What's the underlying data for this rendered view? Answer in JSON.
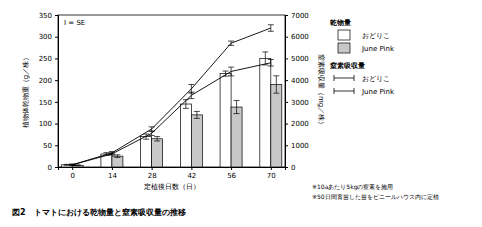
{
  "chart_data": {
    "type": "bar",
    "title": "図2　トマトにおける乾物量と窒素吸収量の推移",
    "x_label": "定植後日数（日）",
    "y_label": "植物体乾物重（g／株）",
    "y2_label": "窒素吸収量（mg／株）",
    "error_note": "I = SE",
    "legend_titles": [
      "乾物量",
      "窒素吸収量"
    ],
    "notes": [
      "※10aあたり5kgの窒素を施用",
      "※50日間育苗した苗をビニールハウス内に定植"
    ],
    "x": [
      0,
      14,
      28,
      42,
      56,
      70
    ],
    "xlim": [
      -5,
      75
    ],
    "xticks": [
      0,
      14,
      28,
      42,
      56,
      70
    ],
    "ylim": [
      0,
      350
    ],
    "yticks": [
      0,
      50,
      100,
      150,
      200,
      250,
      300,
      350
    ],
    "y2lim": [
      0,
      7000
    ],
    "y2ticks": [
      0,
      1000,
      2000,
      3000,
      4000,
      5000,
      6000,
      7000
    ],
    "legend": "right",
    "series": [
      {
        "name": "おどりこ",
        "type": "bar",
        "color": "#ffffff",
        "values": [
          5,
          30,
          70,
          145,
          215,
          250
        ],
        "errors": [
          1,
          3,
          6,
          10,
          6,
          15
        ]
      },
      {
        "name": "June Pink",
        "type": "bar",
        "color": "#c8c8c8",
        "values": [
          4,
          25,
          65,
          120,
          138,
          190
        ],
        "errors": [
          1,
          3,
          5,
          8,
          15,
          20
        ]
      },
      {
        "name": "おどりこ",
        "type": "line",
        "axis": "y2",
        "color": "#000000",
        "line_style": "solid",
        "values": [
          100,
          650,
          1750,
          3600,
          5700,
          6400
        ],
        "errors": [
          30,
          60,
          100,
          200,
          100,
          150
        ]
      },
      {
        "name": "June Pink",
        "type": "line",
        "axis": "y2",
        "color": "#000000",
        "line_style": "solid",
        "values": [
          100,
          600,
          1550,
          3300,
          4400,
          4800
        ],
        "errors": [
          30,
          50,
          100,
          150,
          200,
          150
        ]
      }
    ]
  }
}
